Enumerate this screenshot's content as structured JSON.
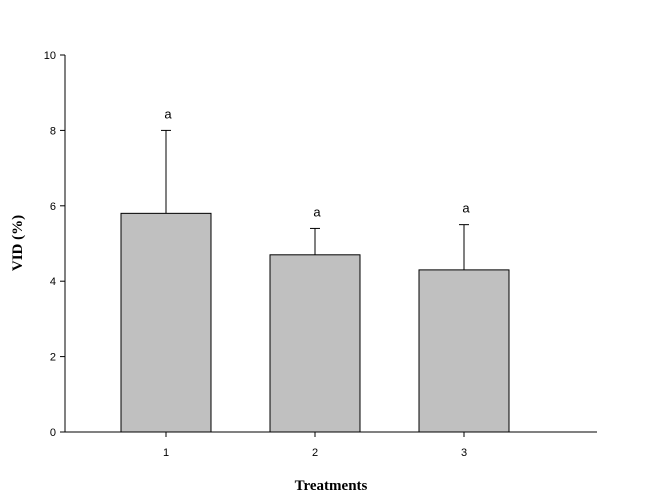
{
  "chart_data": {
    "type": "bar",
    "categories": [
      "1",
      "2",
      "3"
    ],
    "values": [
      5.8,
      4.7,
      4.3
    ],
    "error_upper": [
      8.0,
      5.4,
      5.5
    ],
    "annotations": [
      "a",
      "a",
      "a"
    ],
    "xlabel": "Treatments",
    "ylabel": "VID (%)",
    "ylim": [
      0,
      10
    ],
    "yticks": [
      "0",
      "2",
      "4",
      "6",
      "8",
      "10"
    ],
    "grid": false,
    "bar_color": "#c0c0c0",
    "edge_color": "#000000"
  }
}
